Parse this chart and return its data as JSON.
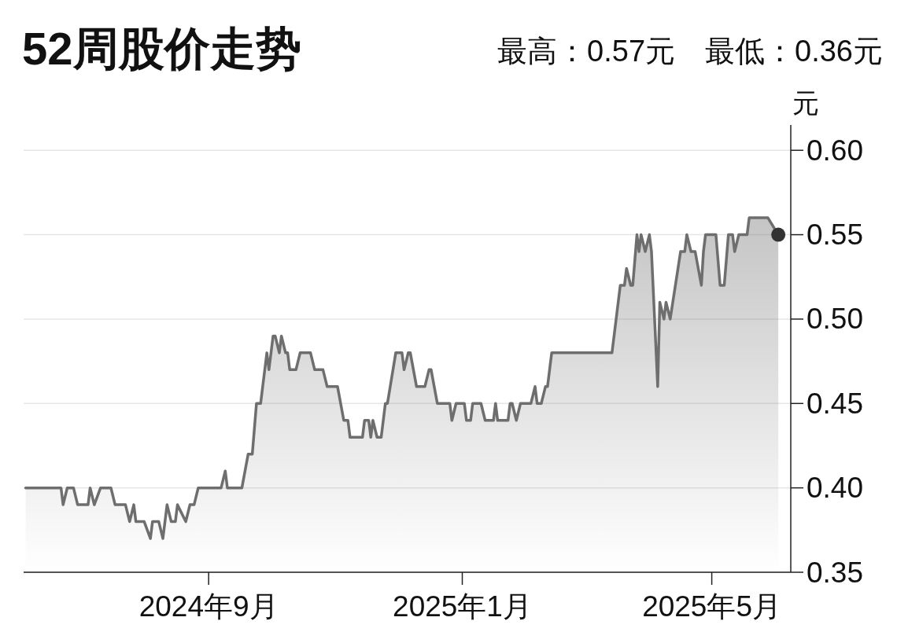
{
  "chart_data": {
    "type": "area",
    "title": "52周股价走势",
    "subtitle": "最高：0.57元　最低：0.36元",
    "ylabel": "元",
    "xlim": [
      "2024-06-04",
      "2025-06-08"
    ],
    "ylim": [
      0.35,
      0.615
    ],
    "xticks": [
      {
        "value": "2024-09-01",
        "label": "2024年9月"
      },
      {
        "value": "2025-01-01",
        "label": "2025年1月"
      },
      {
        "value": "2025-05-01",
        "label": "2025年5月"
      }
    ],
    "yticks": [
      {
        "value": 0.35,
        "label": "0.35"
      },
      {
        "value": 0.4,
        "label": "0.40"
      },
      {
        "value": 0.45,
        "label": "0.45"
      },
      {
        "value": 0.5,
        "label": "0.50"
      },
      {
        "value": 0.55,
        "label": "0.55"
      },
      {
        "value": 0.6,
        "label": "0.60"
      }
    ],
    "grid": "y",
    "series": [
      {
        "type": "area",
        "color": "#6e6e6e",
        "x": [
          "2024-06-05",
          "2024-06-22",
          "2024-06-23",
          "2024-06-25",
          "2024-06-28",
          "2024-06-30",
          "2024-07-05",
          "2024-07-06",
          "2024-07-08",
          "2024-07-11",
          "2024-07-16",
          "2024-07-18",
          "2024-07-23",
          "2024-07-25",
          "2024-07-27",
          "2024-07-28",
          "2024-08-01",
          "2024-08-04",
          "2024-08-05",
          "2024-08-08",
          "2024-08-10",
          "2024-08-12",
          "2024-08-14",
          "2024-08-16",
          "2024-08-17",
          "2024-08-21",
          "2024-08-23",
          "2024-08-25",
          "2024-08-27",
          "2024-09-07",
          "2024-09-09",
          "2024-09-10",
          "2024-09-17",
          "2024-09-20",
          "2024-09-22",
          "2024-09-24",
          "2024-09-26",
          "2024-09-29",
          "2024-09-30",
          "2024-10-02",
          "2024-10-03",
          "2024-10-05",
          "2024-10-06",
          "2024-10-08",
          "2024-10-09",
          "2024-10-10",
          "2024-10-13",
          "2024-10-15",
          "2024-10-20",
          "2024-10-22",
          "2024-10-26",
          "2024-10-28",
          "2024-11-02",
          "2024-11-05",
          "2024-11-07",
          "2024-11-08",
          "2024-11-14",
          "2024-11-15",
          "2024-11-17",
          "2024-11-18",
          "2024-11-19",
          "2024-11-21",
          "2024-11-23",
          "2024-11-25",
          "2024-11-26",
          "2024-11-30",
          "2024-12-03",
          "2024-12-04",
          "2024-12-06",
          "2024-12-07",
          "2024-12-10",
          "2024-12-14",
          "2024-12-16",
          "2024-12-17",
          "2024-12-20",
          "2024-12-26",
          "2024-12-27",
          "2024-12-29",
          "2025-01-02",
          "2025-01-03",
          "2025-01-05",
          "2025-01-06",
          "2025-01-10",
          "2025-01-12",
          "2025-01-16",
          "2025-01-17",
          "2025-01-18",
          "2025-01-23",
          "2025-01-24",
          "2025-01-25",
          "2025-01-27",
          "2025-01-29",
          "2025-02-03",
          "2025-02-05",
          "2025-02-06",
          "2025-02-08",
          "2025-02-10",
          "2025-02-11",
          "2025-02-13",
          "2025-03-14",
          "2025-03-15",
          "2025-03-18",
          "2025-03-20",
          "2025-03-21",
          "2025-03-23",
          "2025-03-24",
          "2025-03-26",
          "2025-03-27",
          "2025-03-28",
          "2025-03-30",
          "2025-04-01",
          "2025-04-02",
          "2025-04-05",
          "2025-04-06",
          "2025-04-08",
          "2025-04-09",
          "2025-04-11",
          "2025-04-16",
          "2025-04-18",
          "2025-04-19",
          "2025-04-21",
          "2025-04-23",
          "2025-04-26",
          "2025-04-27",
          "2025-04-28",
          "2025-05-03",
          "2025-05-05",
          "2025-05-07",
          "2025-05-09",
          "2025-05-11",
          "2025-05-12",
          "2025-05-14",
          "2025-05-18",
          "2025-05-19",
          "2025-05-28",
          "2025-06-02"
        ],
        "values": [
          0.4,
          0.4,
          0.39,
          0.4,
          0.4,
          0.39,
          0.39,
          0.4,
          0.39,
          0.4,
          0.4,
          0.39,
          0.39,
          0.38,
          0.39,
          0.38,
          0.38,
          0.37,
          0.38,
          0.38,
          0.37,
          0.39,
          0.38,
          0.38,
          0.39,
          0.38,
          0.39,
          0.39,
          0.4,
          0.4,
          0.41,
          0.4,
          0.4,
          0.42,
          0.42,
          0.45,
          0.45,
          0.48,
          0.47,
          0.49,
          0.49,
          0.48,
          0.49,
          0.48,
          0.48,
          0.47,
          0.47,
          0.48,
          0.48,
          0.47,
          0.47,
          0.46,
          0.46,
          0.44,
          0.44,
          0.43,
          0.43,
          0.44,
          0.44,
          0.43,
          0.44,
          0.43,
          0.43,
          0.45,
          0.45,
          0.48,
          0.48,
          0.47,
          0.48,
          0.48,
          0.46,
          0.46,
          0.47,
          0.47,
          0.45,
          0.45,
          0.44,
          0.45,
          0.45,
          0.44,
          0.44,
          0.45,
          0.45,
          0.44,
          0.44,
          0.45,
          0.44,
          0.44,
          0.45,
          0.45,
          0.44,
          0.45,
          0.45,
          0.46,
          0.45,
          0.45,
          0.46,
          0.46,
          0.48,
          0.48,
          0.49,
          0.52,
          0.52,
          0.53,
          0.52,
          0.52,
          0.55,
          0.54,
          0.55,
          0.54,
          0.55,
          0.54,
          0.46,
          0.51,
          0.5,
          0.51,
          0.5,
          0.54,
          0.54,
          0.55,
          0.54,
          0.54,
          0.52,
          0.54,
          0.55,
          0.55,
          0.52,
          0.52,
          0.55,
          0.55,
          0.54,
          0.55,
          0.55,
          0.56,
          0.56,
          0.55
        ]
      },
      {
        "type": "scatter",
        "color": "#333333",
        "marker": "circle",
        "x": [
          "2025-06-02"
        ],
        "values": [
          0.55
        ]
      }
    ]
  }
}
